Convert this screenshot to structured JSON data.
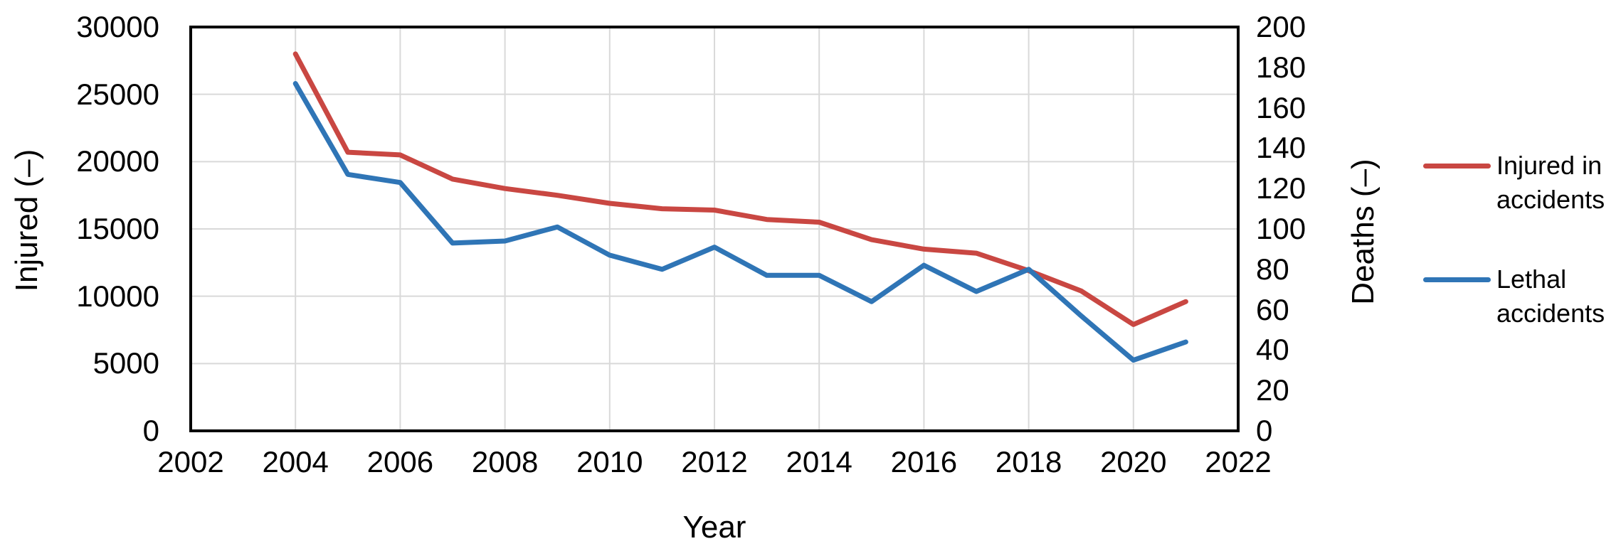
{
  "chart_data": {
    "type": "line",
    "title": "",
    "xlabel": "Year",
    "ylabel_left": "Injured (–)",
    "ylabel_right": "Deaths (–)",
    "x": [
      2004,
      2005,
      2006,
      2007,
      2008,
      2009,
      2010,
      2011,
      2012,
      2013,
      2014,
      2015,
      2016,
      2017,
      2018,
      2019,
      2020,
      2021
    ],
    "series": [
      {
        "name": "Injured in accidents",
        "axis": "left",
        "color": "#c94742",
        "values": [
          28000,
          20700,
          20500,
          18700,
          18000,
          17500,
          16900,
          16500,
          16400,
          15700,
          15500,
          14200,
          13500,
          13200,
          11900,
          10400,
          7900,
          9600
        ]
      },
      {
        "name": "Lethal accidents",
        "axis": "right",
        "color": "#2f75b6",
        "values": [
          172,
          127,
          123,
          93,
          94,
          101,
          87,
          80,
          91,
          77,
          77,
          64,
          82,
          69,
          80,
          57,
          35,
          44
        ]
      }
    ],
    "xlim": [
      2002,
      2022
    ],
    "ylim_left": [
      0,
      30000
    ],
    "ylim_right": [
      0,
      200
    ],
    "x_ticks": [
      2002,
      2004,
      2006,
      2008,
      2010,
      2012,
      2014,
      2016,
      2018,
      2020,
      2022
    ],
    "y_left_ticks": [
      0,
      5000,
      10000,
      15000,
      20000,
      25000,
      30000
    ],
    "y_right_ticks": [
      0,
      20,
      40,
      60,
      80,
      100,
      120,
      140,
      160,
      180,
      200
    ],
    "grid": true,
    "legend_position": "right",
    "colors": {
      "grid": "#d9d9d9",
      "axis_border": "#000000",
      "text": "#000000",
      "background": "#ffffff"
    }
  }
}
